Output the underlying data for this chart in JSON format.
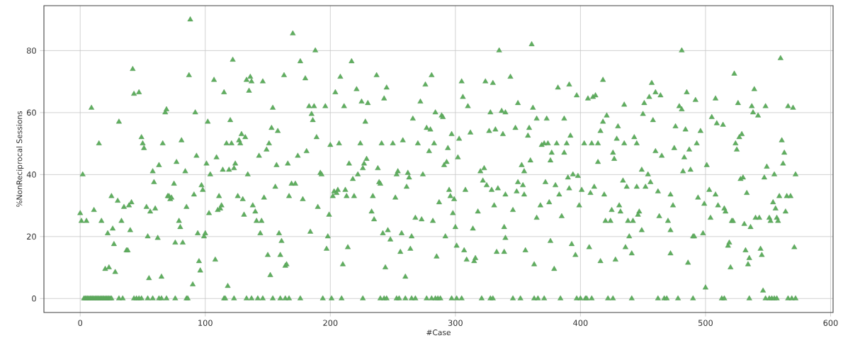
{
  "chart_data": {
    "type": "scatter",
    "xlabel": "#Case",
    "ylabel": "%NonReciprocal Sessions",
    "xlim": [
      -29,
      602
    ],
    "ylim": [
      -4.5,
      94.5
    ],
    "xticks": [
      0,
      100,
      200,
      300,
      400,
      500,
      600
    ],
    "yticks": [
      0,
      20,
      40,
      60,
      80
    ],
    "grid": true,
    "marker": "triangle",
    "series": [
      {
        "color": "#5fae5f",
        "x": [
          0,
          1,
          2,
          5,
          9,
          11,
          15,
          17,
          20,
          22,
          23,
          25,
          26,
          27,
          28,
          30,
          31,
          33,
          35,
          37,
          38,
          39,
          40,
          41,
          42,
          43,
          47,
          49,
          50,
          51,
          53,
          54,
          55,
          56,
          58,
          59,
          60,
          62,
          63,
          65,
          66,
          68,
          69,
          70,
          71,
          72,
          73,
          75,
          76,
          77,
          79,
          80,
          81,
          82,
          84,
          85,
          87,
          88,
          90,
          91,
          92,
          93,
          94,
          95,
          96,
          97,
          98,
          99,
          100,
          101,
          102,
          103,
          104,
          107,
          108,
          109,
          110,
          111,
          112,
          113,
          114,
          115,
          117,
          118,
          119,
          120,
          121,
          122,
          123,
          124,
          126,
          127,
          128,
          129,
          130,
          131,
          132,
          133,
          134,
          135,
          136,
          137,
          138,
          140,
          141,
          143,
          144,
          145,
          146,
          147,
          149,
          150,
          151,
          152,
          153,
          154,
          156,
          157,
          158,
          159,
          160,
          161,
          163,
          164,
          165,
          166,
          167,
          169,
          170,
          172,
          174,
          176,
          178,
          180,
          181,
          183,
          184,
          185,
          186,
          187,
          188,
          189,
          190,
          192,
          193,
          196,
          197,
          198,
          199,
          200,
          202,
          203,
          204,
          205,
          206,
          207,
          208,
          210,
          211,
          212,
          213,
          214,
          215,
          217,
          218,
          219,
          221,
          222,
          224,
          225,
          226,
          227,
          228,
          229,
          230,
          233,
          234,
          235,
          237,
          238,
          239,
          240,
          241,
          242,
          243,
          244,
          245,
          246,
          248,
          250,
          252,
          253,
          254,
          256,
          257,
          258,
          260,
          261,
          262,
          263,
          264,
          265,
          266,
          268,
          270,
          272,
          273,
          274,
          276,
          277,
          279,
          280,
          281,
          282,
          283,
          284,
          285,
          287,
          289,
          290,
          291,
          292,
          293,
          294,
          295,
          296,
          297,
          298,
          299,
          300,
          301,
          302,
          303,
          305,
          306,
          307,
          308,
          309,
          310,
          312,
          314,
          315,
          316,
          318,
          320,
          322,
          323,
          324,
          325,
          327,
          328,
          329,
          330,
          331,
          332,
          333,
          334,
          335,
          337,
          338,
          339,
          340,
          344,
          361,
          350,
          340,
          362,
          365,
          373,
          382,
          391,
          397,
          387,
          348,
          359,
          358,
          369,
          371,
          374,
          381,
          389,
          392,
          377,
          387,
          376,
          360,
          353,
          355,
          394,
          398,
          390,
          372,
          380,
          391,
          350,
          354,
          349,
          355,
          401,
          399,
          383,
          375,
          368,
          385,
          365,
          346,
          376,
          393,
          396,
          379,
          363,
          356,
          340,
          339,
          481,
          418,
          457,
          406,
          410,
          412,
          460,
          464,
          455,
          451,
          435,
          485,
          492,
          479,
          481,
          508,
          421,
          418,
          430,
          416,
          450,
          458,
          476,
          484,
          496,
          505,
          509,
          403,
          409,
          414,
          429,
          435,
          443,
          445,
          460,
          465,
          475,
          487,
          493,
          483,
          426,
          427,
          414,
          449,
          454,
          482,
          488,
          501,
          434,
          437,
          445,
          411,
          408,
          452,
          456,
          462,
          419,
          472,
          474,
          494,
          499,
          503,
          508,
          510,
          425,
          431,
          432,
          447,
          446,
          420,
          424,
          438,
          442,
          463,
          470,
          504,
          449,
          472,
          439,
          490,
          498,
          491,
          407,
          436,
          441,
          428,
          416,
          472,
          486,
          500,
          514,
          515,
          516,
          518,
          519,
          520,
          521,
          522,
          523,
          524,
          525,
          526,
          527,
          528,
          529,
          530,
          531,
          532,
          533,
          534,
          535,
          536,
          537,
          538,
          539,
          540,
          542,
          543,
          544,
          545,
          546,
          547,
          548,
          549,
          551,
          552,
          554,
          555,
          556,
          557,
          558,
          559,
          560,
          561,
          562,
          563,
          564,
          565,
          566,
          568,
          570,
          571,
          572,
          3,
          4,
          5,
          6,
          7,
          8,
          9,
          10,
          11,
          12,
          13,
          14,
          15,
          16,
          17,
          18,
          19,
          20,
          21,
          22,
          23,
          24,
          25,
          31,
          34,
          43,
          45,
          47,
          49,
          54,
          58,
          63,
          65,
          69,
          76,
          85,
          86,
          115,
          116,
          123,
          133,
          137,
          142,
          146,
          154,
          160,
          164,
          167,
          176,
          194,
          201,
          209,
          226,
          240,
          243,
          245,
          253,
          255,
          260,
          265,
          268,
          277,
          281,
          284,
          286,
          288,
          297,
          301,
          305,
          321,
          328,
          330,
          346,
          352,
          363,
          366,
          371,
          384,
          397,
          400,
          404,
          405,
          409,
          422,
          426,
          441,
          462,
          467,
          469,
          478,
          490,
          513,
          515,
          535,
          548,
          551,
          553,
          555,
          557,
          566,
          569,
          572
        ],
        "values": [
          27.5,
          25,
          40,
          25,
          61.5,
          28.5,
          50,
          25,
          9.5,
          21,
          10,
          33,
          22.5,
          17.5,
          8.5,
          31.5,
          57,
          25,
          29.5,
          15.5,
          15.5,
          30,
          22,
          31,
          74,
          66,
          66.5,
          52,
          50,
          48.5,
          29.5,
          20,
          6.5,
          28,
          41,
          37.5,
          29,
          19.5,
          43,
          7,
          50,
          60,
          61,
          33,
          33,
          32,
          32.5,
          37,
          18,
          44,
          25,
          23,
          51,
          18,
          41,
          29.5,
          72,
          90,
          4.5,
          33.5,
          60,
          46,
          21,
          12,
          9,
          36.5,
          35,
          20,
          21,
          43.5,
          57,
          27.5,
          40,
          70.5,
          12.5,
          45.5,
          28.5,
          33,
          29,
          30,
          41.5,
          66.5,
          50,
          4,
          41.5,
          57.5,
          50,
          77,
          42,
          43.5,
          33,
          51,
          50,
          53,
          32,
          27,
          52,
          70.5,
          40,
          67,
          71.5,
          70,
          30,
          28,
          25,
          46,
          21,
          25,
          70,
          32.5,
          48,
          14,
          50,
          7.5,
          55,
          61.5,
          36,
          43,
          54,
          21,
          14,
          18.5,
          72,
          10.5,
          11,
          43.5,
          33,
          37,
          85.5,
          37,
          46,
          76.5,
          32,
          71,
          47.5,
          62,
          21.5,
          59.5,
          57.5,
          62,
          80,
          52,
          29.5,
          40.5,
          40,
          62,
          16,
          20,
          27,
          49.5,
          33,
          34.5,
          66.5,
          34,
          35,
          50,
          71.5,
          11,
          62,
          35,
          33,
          16.5,
          43.5,
          76.5,
          38.5,
          33,
          67.5,
          40,
          50,
          63.5,
          42,
          43.5,
          57,
          45,
          63,
          28,
          33,
          25.5,
          72,
          42,
          37.5,
          37,
          50,
          21,
          64.5,
          10,
          68,
          22,
          19,
          50,
          32.5,
          40,
          41,
          15,
          21,
          51,
          7,
          36,
          40.5,
          39,
          16,
          20,
          58,
          26,
          50,
          63.5,
          25.5,
          40,
          69,
          55,
          47.5,
          54.5,
          72,
          25,
          50,
          60,
          13.5,
          31,
          59,
          58.5,
          43,
          20,
          44,
          48.5,
          35,
          33,
          53,
          27.5,
          32,
          23,
          17,
          45.5,
          51.5,
          70,
          65,
          15.5,
          35,
          12.5,
          62,
          53.5,
          22.5,
          12,
          13,
          28,
          41,
          38,
          42,
          70,
          36.5,
          54,
          60,
          35,
          69.5,
          30,
          54.5,
          15,
          35.5,
          80,
          60.5,
          53,
          23,
          33.5,
          71.5,
          82,
          63,
          60,
          61.5,
          58,
          58,
          68,
          69,
          65.5,
          58,
          55,
          55,
          52.5,
          49.5,
          50,
          50,
          50,
          50,
          52.5,
          47,
          47,
          44.5,
          44.5,
          43,
          41,
          40,
          39.5,
          39,
          37.5,
          36.5,
          35.5,
          37.5,
          36.5,
          34.5,
          33.5,
          35,
          30,
          33.5,
          31,
          30,
          26.5,
          26,
          28.5,
          18.5,
          17.5,
          14,
          9.5,
          11,
          15.5,
          19.5,
          15,
          80,
          70.5,
          69.5,
          64.5,
          65,
          65.5,
          66.5,
          65.5,
          65,
          63,
          62.5,
          66.5,
          64,
          62,
          61,
          64.5,
          59,
          57,
          55.5,
          54,
          59.5,
          57.5,
          55.5,
          54.5,
          54,
          58.5,
          56.5,
          50,
          50,
          50,
          51.5,
          50,
          52,
          50,
          47.5,
          46,
          48.5,
          48,
          50,
          45.5,
          47,
          45,
          44,
          41.5,
          40,
          41,
          41.5,
          43,
          38,
          36,
          36,
          36,
          34,
          36,
          37.5,
          34.5,
          33.5,
          33.5,
          30,
          32.5,
          30.5,
          35,
          33.5,
          30,
          28.5,
          30,
          28,
          28,
          27,
          25,
          25,
          25,
          25,
          26.5,
          25,
          26,
          22,
          22,
          20,
          20,
          21,
          20,
          16.5,
          16.5,
          14.5,
          12.5,
          12,
          14.5,
          11.5,
          3.5,
          56,
          29,
          28,
          17,
          18,
          10,
          25,
          25,
          72.5,
          50,
          48,
          63,
          52,
          38.5,
          53,
          39,
          24,
          15.5,
          34,
          11,
          13,
          23,
          62,
          60,
          67.5,
          26,
          59,
          26,
          16,
          14,
          2.5,
          39,
          62,
          42.5,
          26,
          25,
          31,
          40,
          29,
          26,
          25,
          33,
          77.5,
          51,
          43.5,
          47,
          28,
          33,
          62,
          33,
          61.5,
          16.5,
          40,
          0,
          0,
          0,
          0,
          0,
          0,
          0,
          0,
          0,
          0,
          0,
          0,
          0,
          0,
          0,
          0,
          0,
          0,
          0,
          0,
          0,
          0,
          0,
          0,
          0,
          0,
          0,
          0,
          0,
          0,
          0,
          0,
          0,
          0,
          0,
          0,
          0,
          0,
          0,
          0,
          0,
          0,
          0,
          0,
          0,
          0,
          0,
          0,
          0,
          0,
          0,
          0,
          0,
          0,
          0,
          0,
          0,
          0,
          0,
          0,
          0,
          0,
          0,
          0,
          0,
          0,
          0,
          0,
          0,
          0,
          0,
          0,
          0,
          0,
          0,
          0,
          0,
          0,
          0,
          0,
          0,
          0,
          0,
          0,
          0,
          0,
          0,
          0,
          0,
          0,
          0,
          0,
          0,
          0,
          0,
          0,
          0,
          0,
          0,
          0,
          0,
          0
        ]
      }
    ]
  }
}
